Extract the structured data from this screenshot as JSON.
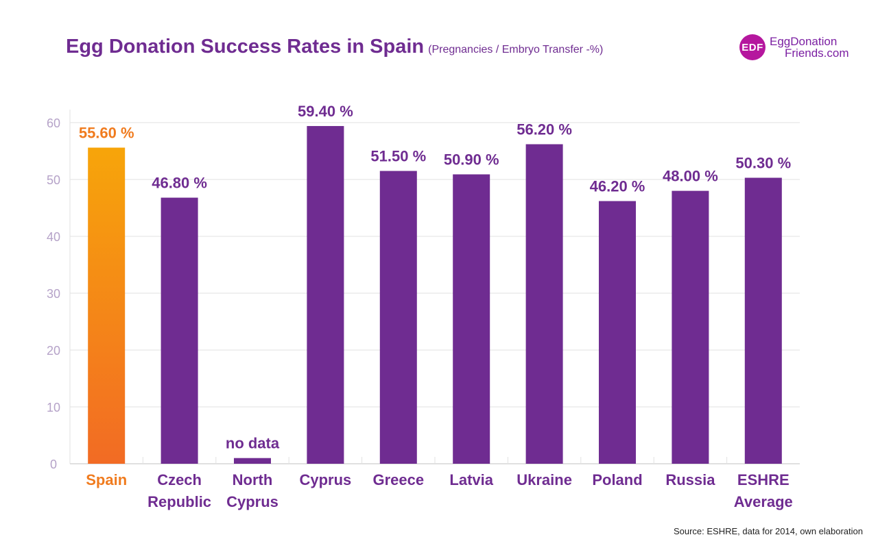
{
  "header": {
    "title": "Egg Donation Success Rates in Spain",
    "subtitle": "(Pregnancies / Embryo Transfer -%)"
  },
  "logo": {
    "mark": "EDF",
    "line1": "EggDonation",
    "line2": "Friends.com"
  },
  "source": "Source: ESHRE, data for 2014, own elaboration",
  "colors": {
    "bar": "#6f2c91",
    "highlight_top": "#f7a50a",
    "highlight_bottom": "#f26b24",
    "highlight_text": "#f07b1e",
    "axis_text": "#b5a2c8",
    "grid": "#e2e2e2"
  },
  "chart_data": {
    "type": "bar",
    "title": "Egg Donation Success Rates in Spain",
    "subtitle": "(Pregnancies / Embryo Transfer -%)",
    "xlabel": "",
    "ylabel": "",
    "ylim": [
      0,
      60
    ],
    "yticks": [
      0,
      10,
      20,
      30,
      40,
      50,
      60
    ],
    "grid": true,
    "highlight_index": 0,
    "categories": [
      [
        "Spain"
      ],
      [
        "Czech",
        "Republic"
      ],
      [
        "North",
        "Cyprus"
      ],
      [
        "Cyprus"
      ],
      [
        "Greece"
      ],
      [
        "Latvia"
      ],
      [
        "Ukraine"
      ],
      [
        "Poland"
      ],
      [
        "Russia"
      ],
      [
        "ESHRE",
        "Average"
      ]
    ],
    "values": [
      55.6,
      46.8,
      1.0,
      59.4,
      51.5,
      50.9,
      56.2,
      46.2,
      48.0,
      50.3
    ],
    "labels": [
      "55.60 %",
      "46.80 %",
      "no data",
      "59.40 %",
      "51.50 %",
      "50.90 %",
      "56.20 %",
      "46.20 %",
      "48.00 %",
      "50.30 %"
    ]
  }
}
